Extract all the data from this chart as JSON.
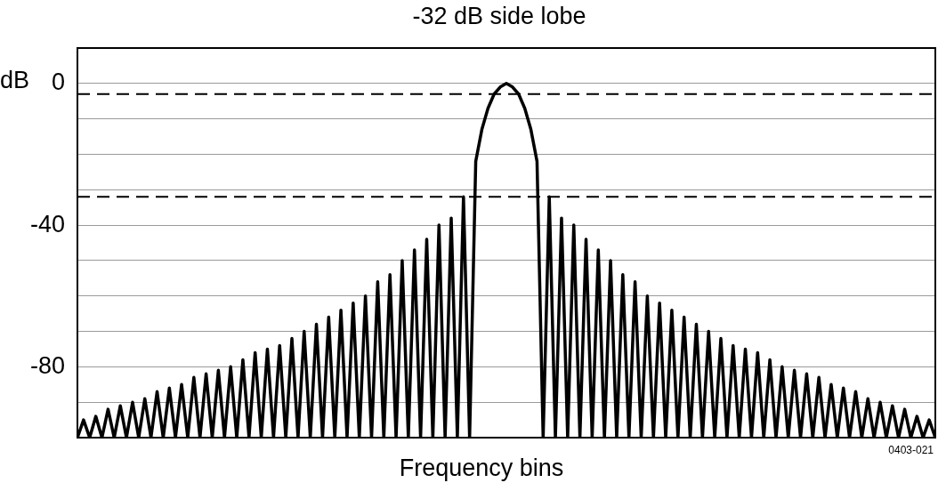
{
  "chart_data": {
    "type": "line",
    "title": "-32 dB side lobe",
    "xlabel": "Frequency bins",
    "ylabel": "dB",
    "annotations": [
      "0403-021"
    ],
    "categories": [
      null,
      null,
      null,
      null,
      null,
      null,
      null,
      null,
      null,
      null,
      null,
      null,
      null,
      null,
      null,
      null,
      null,
      null,
      null,
      null,
      null,
      null,
      null,
      null,
      null,
      null,
      null,
      null,
      null,
      null,
      null,
      null,
      null,
      null,
      null,
      null,
      null,
      null,
      null,
      null,
      null,
      null,
      null,
      null,
      null,
      null,
      null,
      null,
      null,
      null,
      null,
      null,
      null,
      null,
      null,
      null,
      null,
      null,
      null,
      null,
      null,
      null,
      null,
      null,
      null,
      null,
      null,
      null,
      null,
      null,
      null,
      null,
      null,
      null,
      null,
      null,
      null,
      null,
      null,
      null,
      null,
      null,
      null,
      null,
      null,
      null,
      null,
      null,
      null,
      null,
      null,
      null,
      null,
      null,
      null,
      null,
      null,
      null,
      null,
      null,
      null,
      null,
      null,
      null,
      null,
      null,
      null,
      null,
      null,
      null,
      null,
      null,
      null,
      null,
      null,
      null,
      null,
      null,
      null,
      null,
      null,
      null,
      null,
      null,
      null,
      null,
      null,
      null,
      null,
      null,
      null,
      null,
      null,
      null,
      null,
      null,
      null,
      null,
      null,
      null,
      null
    ],
    "values": [
      -100,
      -95,
      -100,
      -94,
      -100,
      -92,
      -100,
      -91,
      -100,
      -90,
      -100,
      -89,
      -100,
      -87,
      -100,
      -86,
      -100,
      -85,
      -100,
      -83,
      -100,
      -82,
      -100,
      -81,
      -100,
      -80,
      -100,
      -78,
      -100,
      -76,
      -100,
      -75,
      -100,
      -74,
      -100,
      -72,
      -100,
      -70,
      -100,
      -68,
      -100,
      -66,
      -100,
      -64,
      -100,
      -62,
      -100,
      -60,
      -100,
      -56,
      -100,
      -54,
      -100,
      -50,
      -100,
      -47,
      -100,
      -44,
      -100,
      -40,
      -100,
      -38,
      -100,
      -32,
      -100,
      -22,
      -13,
      -7,
      -3,
      -1,
      0,
      -1,
      -3,
      -7,
      -13,
      -22,
      -100,
      -32,
      -100,
      -38,
      -100,
      -40,
      -100,
      -44,
      -100,
      -47,
      -100,
      -50,
      -100,
      -54,
      -100,
      -56,
      -100,
      -60,
      -100,
      -62,
      -100,
      -64,
      -100,
      -66,
      -100,
      -68,
      -100,
      -70,
      -100,
      -72,
      -100,
      -74,
      -100,
      -75,
      -100,
      -76,
      -100,
      -78,
      -100,
      -80,
      -100,
      -81,
      -100,
      -82,
      -100,
      -83,
      -100,
      -85,
      -100,
      -86,
      -100,
      -87,
      -100,
      -89,
      -100,
      -90,
      -100,
      -91,
      -100,
      -92,
      -100,
      -94,
      -100,
      -95,
      -100
    ],
    "color": "#000000",
    "marker": "none",
    "line_style": "solid",
    "ylim": [
      -100,
      10
    ],
    "yticks": [
      {
        "value": -100,
        "label": null
      },
      {
        "value": -90,
        "label": null
      },
      -80,
      {
        "value": -70,
        "label": null
      },
      {
        "value": -60,
        "label": null
      },
      {
        "value": -50,
        "label": null
      },
      -40,
      {
        "value": -30,
        "label": null
      },
      {
        "value": -20,
        "label": null
      },
      {
        "value": -10,
        "label": null
      },
      0,
      {
        "value": 10,
        "label": null
      }
    ],
    "ref_lines": [
      {
        "axis": "y",
        "value": -3,
        "line_style": "dashed",
        "color": "#000000"
      },
      {
        "axis": "y",
        "value": -32,
        "line_style": "dashed",
        "color": "#000000"
      }
    ],
    "grid": "y",
    "legend": false,
    "tick_labels": "y"
  }
}
